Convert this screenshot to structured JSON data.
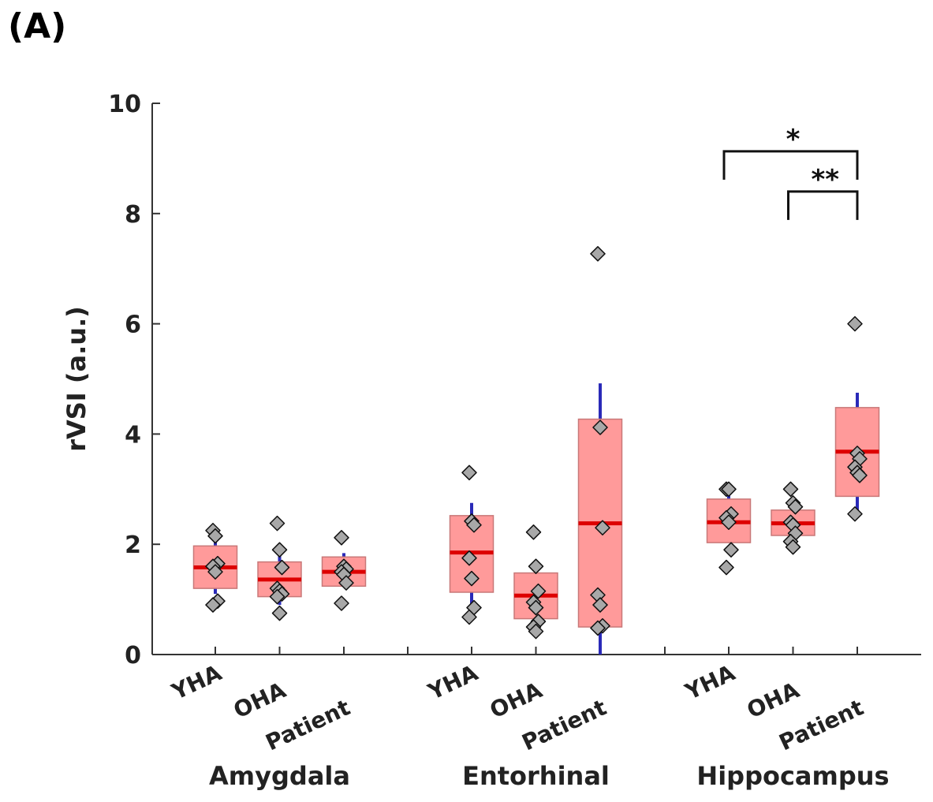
{
  "panel_label": "(A)",
  "chart_data": {
    "type": "box",
    "ylabel": "rVSI (a.u.)",
    "xlabel": "",
    "ylim": [
      0,
      10
    ],
    "yticks": [
      0,
      2,
      4,
      6,
      8,
      10
    ],
    "grid": false,
    "colors": {
      "box_fill": "#ff9a9a",
      "box_edge": "#c87878",
      "median": "#dd0000",
      "whisker": "#2a2ab8",
      "point_fill": "#a8a8a8",
      "point_edge": "#111111"
    },
    "groups": [
      {
        "name": "Amygdala",
        "boxes": [
          {
            "label": "YHA",
            "median": 1.58,
            "q1": 1.2,
            "q3": 1.97,
            "whisker_low": 1.1,
            "whisker_high": 2.05,
            "points": [
              2.25,
              2.15,
              1.65,
              1.6,
              1.5,
              0.97,
              0.9
            ]
          },
          {
            "label": "OHA",
            "median": 1.36,
            "q1": 1.05,
            "q3": 1.68,
            "whisker_low": 0.9,
            "whisker_high": 1.85,
            "points": [
              2.38,
              1.9,
              1.58,
              1.2,
              1.15,
              1.1,
              1.05,
              0.75
            ]
          },
          {
            "label": "Patient",
            "median": 1.5,
            "q1": 1.24,
            "q3": 1.77,
            "whisker_low": 1.24,
            "whisker_high": 1.84,
            "points": [
              2.12,
              1.6,
              1.55,
              1.5,
              1.45,
              1.3,
              0.93
            ]
          }
        ]
      },
      {
        "name": "Entorhinal",
        "boxes": [
          {
            "label": "YHA",
            "median": 1.85,
            "q1": 1.13,
            "q3": 2.52,
            "whisker_low": 0.85,
            "whisker_high": 2.75,
            "points": [
              3.3,
              2.42,
              2.35,
              1.75,
              1.38,
              0.85,
              0.68
            ]
          },
          {
            "label": "OHA",
            "median": 1.07,
            "q1": 0.65,
            "q3": 1.48,
            "whisker_low": 0.65,
            "whisker_high": 1.48,
            "points": [
              2.22,
              1.6,
              1.15,
              0.95,
              0.85,
              0.6,
              0.5,
              0.42
            ]
          },
          {
            "label": "Patient",
            "median": 2.38,
            "q1": 0.5,
            "q3": 4.27,
            "whisker_low": 0.0,
            "whisker_high": 4.92,
            "points": [
              7.27,
              4.12,
              2.3,
              1.08,
              0.9,
              0.52,
              0.48
            ]
          }
        ]
      },
      {
        "name": "Hippocampus",
        "boxes": [
          {
            "label": "YHA",
            "median": 2.4,
            "q1": 2.03,
            "q3": 2.82,
            "whisker_low": 2.03,
            "whisker_high": 2.88,
            "points": [
              3.0,
              3.0,
              2.55,
              2.48,
              2.4,
              1.9,
              1.58
            ]
          },
          {
            "label": "OHA",
            "median": 2.38,
            "q1": 2.16,
            "q3": 2.62,
            "whisker_low": 2.16,
            "whisker_high": 2.62,
            "points": [
              3.0,
              2.75,
              2.68,
              2.4,
              2.35,
              2.2,
              2.05,
              1.95
            ]
          },
          {
            "label": "Patient",
            "median": 3.68,
            "q1": 2.87,
            "q3": 4.48,
            "whisker_low": 2.6,
            "whisker_high": 4.75,
            "points": [
              6.0,
              3.65,
              3.55,
              3.4,
              3.3,
              3.25,
              2.55
            ]
          }
        ]
      }
    ],
    "annotations": [
      {
        "text": "*",
        "group": "Hippocampus",
        "from": "YHA",
        "to": "Patient",
        "y": 9.13
      },
      {
        "text": "**",
        "group": "Hippocampus",
        "from": "OHA",
        "to": "Patient",
        "y": 8.4
      }
    ]
  }
}
